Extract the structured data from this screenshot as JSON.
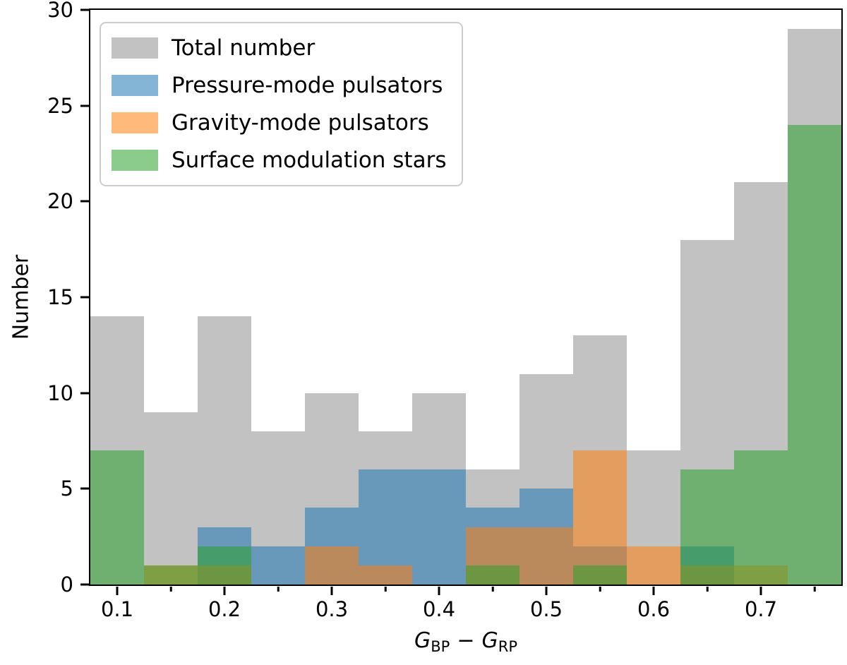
{
  "figure": {
    "background": "#ffffff",
    "text_color": "#000000"
  },
  "chart_data": {
    "type": "histogram",
    "title": "",
    "ylabel": "Number",
    "xlabel_parts": {
      "var1": "G",
      "sub1": "BP",
      "operator": "−",
      "var2": "G",
      "sub2": "RP"
    },
    "xlim": [
      0.075,
      0.775
    ],
    "ylim": [
      0,
      30
    ],
    "grid": false,
    "bin_width": 0.05,
    "bin_edges": [
      0.075,
      0.125,
      0.175,
      0.225,
      0.275,
      0.325,
      0.375,
      0.425,
      0.475,
      0.525,
      0.575,
      0.625,
      0.675,
      0.725,
      0.775
    ],
    "bin_centers": [
      0.1,
      0.15,
      0.2,
      0.25,
      0.3,
      0.35,
      0.4,
      0.45,
      0.5,
      0.55,
      0.6,
      0.65,
      0.7,
      0.75
    ],
    "series": [
      {
        "key": "total",
        "name": "Total number",
        "color": "#808080",
        "alpha": 0.48,
        "rgba": "rgba(128,128,128,0.48)",
        "values": [
          14,
          9,
          14,
          8,
          10,
          8,
          10,
          6,
          11,
          13,
          7,
          18,
          21,
          29
        ]
      },
      {
        "key": "pressure",
        "name": "Pressure-mode pulsators",
        "color": "#1f77b4",
        "alpha": 0.55,
        "rgba": "rgba(31,119,180,0.55)",
        "values": [
          0,
          0,
          3,
          2,
          4,
          6,
          6,
          4,
          5,
          2,
          0,
          2,
          0,
          0
        ]
      },
      {
        "key": "gravity",
        "name": "Gravity-mode pulsators",
        "color": "#ff7f0e",
        "alpha": 0.55,
        "rgba": "rgba(255,127,14,0.55)",
        "values": [
          0,
          1,
          1,
          0,
          2,
          1,
          0,
          3,
          3,
          7,
          2,
          1,
          1,
          0
        ]
      },
      {
        "key": "surface",
        "name": "Surface modulation stars",
        "color": "#2ca02c",
        "alpha": 0.55,
        "rgba": "rgba(44,160,44,0.55)",
        "values": [
          7,
          1,
          2,
          0,
          0,
          0,
          0,
          1,
          0,
          1,
          0,
          6,
          7,
          24
        ]
      }
    ],
    "x_major_ticks": [
      0.1,
      0.2,
      0.3,
      0.4,
      0.5,
      0.6,
      0.7
    ],
    "x_major_tick_labels": [
      "0.1",
      "0.2",
      "0.3",
      "0.4",
      "0.5",
      "0.6",
      "0.7"
    ],
    "x_minor_ticks": [
      0.15,
      0.25,
      0.35,
      0.45,
      0.55,
      0.65,
      0.75
    ],
    "y_major_ticks": [
      0,
      5,
      10,
      15,
      20,
      25,
      30
    ],
    "y_major_tick_labels": [
      "0",
      "5",
      "10",
      "15",
      "20",
      "25",
      "30"
    ],
    "legend": {
      "position": "upper left"
    }
  }
}
